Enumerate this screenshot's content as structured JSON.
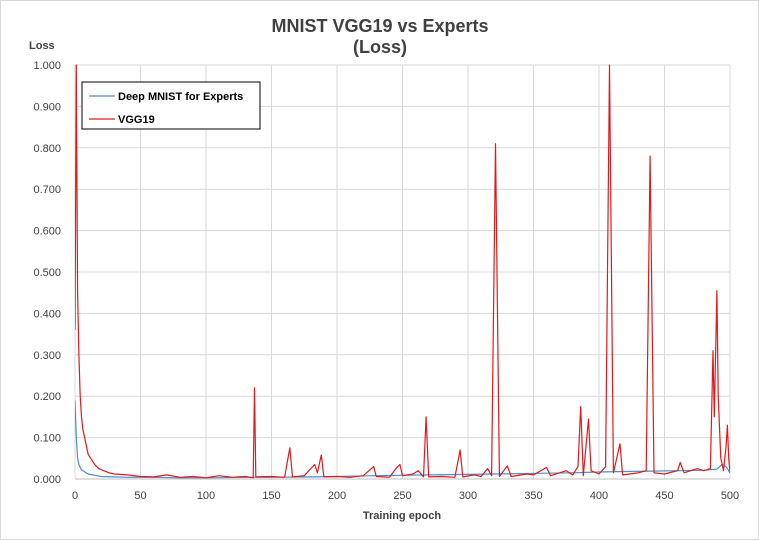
{
  "chart_data": {
    "type": "line",
    "title_lines": [
      "MNIST VGG19 vs Experts",
      "(Loss)"
    ],
    "xlabel": "Training  epoch",
    "ylabel": "Loss",
    "xlim": [
      0,
      500
    ],
    "ylim": [
      0,
      1.0
    ],
    "x_ticks": [
      0,
      50,
      100,
      150,
      200,
      250,
      300,
      350,
      400,
      450,
      500
    ],
    "x_tick_labels": [
      "0",
      "50",
      "100",
      "150",
      "200",
      "250",
      "300",
      "350",
      "400",
      "450",
      "500"
    ],
    "y_ticks": [
      0,
      0.1,
      0.2,
      0.3,
      0.4,
      0.5,
      0.6,
      0.7,
      0.8,
      0.9,
      1.0
    ],
    "y_tick_labels": [
      "0.000",
      "0.100",
      "0.200",
      "0.300",
      "0.400",
      "0.500",
      "0.600",
      "0.700",
      "0.800",
      "0.900",
      "1.000"
    ],
    "grid": "both",
    "legend_position": "top-left",
    "series": [
      {
        "name": "Deep MNIST for Experts",
        "color": "#4a90c8",
        "points": [
          [
            0,
            0.19
          ],
          [
            1,
            0.1
          ],
          [
            2,
            0.05
          ],
          [
            3,
            0.035
          ],
          [
            4,
            0.028
          ],
          [
            5,
            0.022
          ],
          [
            7,
            0.018
          ],
          [
            10,
            0.012
          ],
          [
            15,
            0.009
          ],
          [
            20,
            0.006
          ],
          [
            30,
            0.005
          ],
          [
            40,
            0.004
          ],
          [
            60,
            0.004
          ],
          [
            80,
            0.003
          ],
          [
            100,
            0.003
          ],
          [
            130,
            0.004
          ],
          [
            150,
            0.004
          ],
          [
            180,
            0.005
          ],
          [
            200,
            0.006
          ],
          [
            230,
            0.008
          ],
          [
            250,
            0.009
          ],
          [
            270,
            0.01
          ],
          [
            300,
            0.011
          ],
          [
            320,
            0.012
          ],
          [
            340,
            0.013
          ],
          [
            360,
            0.014
          ],
          [
            380,
            0.015
          ],
          [
            400,
            0.017
          ],
          [
            420,
            0.018
          ],
          [
            440,
            0.019
          ],
          [
            460,
            0.02
          ],
          [
            480,
            0.021
          ],
          [
            490,
            0.024
          ],
          [
            494,
            0.035
          ],
          [
            497,
            0.03
          ],
          [
            500,
            0.015
          ]
        ]
      },
      {
        "name": "VGG19",
        "color": "#e0191d",
        "points": [
          [
            0,
            0.36
          ],
          [
            1,
            1.0
          ],
          [
            2,
            0.45
          ],
          [
            3,
            0.3
          ],
          [
            4,
            0.2
          ],
          [
            5,
            0.15
          ],
          [
            6,
            0.12
          ],
          [
            8,
            0.09
          ],
          [
            10,
            0.06
          ],
          [
            12,
            0.05
          ],
          [
            15,
            0.035
          ],
          [
            18,
            0.025
          ],
          [
            22,
            0.02
          ],
          [
            26,
            0.015
          ],
          [
            30,
            0.012
          ],
          [
            40,
            0.01
          ],
          [
            50,
            0.006
          ],
          [
            60,
            0.005
          ],
          [
            70,
            0.01
          ],
          [
            80,
            0.004
          ],
          [
            90,
            0.006
          ],
          [
            100,
            0.003
          ],
          [
            110,
            0.008
          ],
          [
            120,
            0.004
          ],
          [
            130,
            0.006
          ],
          [
            136,
            0.003
          ],
          [
            137,
            0.22
          ],
          [
            138,
            0.005
          ],
          [
            150,
            0.006
          ],
          [
            160,
            0.004
          ],
          [
            164,
            0.075
          ],
          [
            166,
            0.005
          ],
          [
            175,
            0.008
          ],
          [
            180,
            0.025
          ],
          [
            183,
            0.035
          ],
          [
            185,
            0.015
          ],
          [
            188,
            0.058
          ],
          [
            190,
            0.005
          ],
          [
            200,
            0.006
          ],
          [
            210,
            0.004
          ],
          [
            220,
            0.008
          ],
          [
            228,
            0.03
          ],
          [
            230,
            0.006
          ],
          [
            240,
            0.004
          ],
          [
            245,
            0.025
          ],
          [
            248,
            0.035
          ],
          [
            250,
            0.008
          ],
          [
            258,
            0.012
          ],
          [
            262,
            0.02
          ],
          [
            266,
            0.005
          ],
          [
            268,
            0.15
          ],
          [
            270,
            0.005
          ],
          [
            280,
            0.006
          ],
          [
            290,
            0.004
          ],
          [
            294,
            0.07
          ],
          [
            296,
            0.005
          ],
          [
            305,
            0.01
          ],
          [
            310,
            0.006
          ],
          [
            315,
            0.025
          ],
          [
            318,
            0.008
          ],
          [
            321,
            0.81
          ],
          [
            324,
            0.006
          ],
          [
            330,
            0.032
          ],
          [
            333,
            0.006
          ],
          [
            345,
            0.012
          ],
          [
            350,
            0.01
          ],
          [
            360,
            0.028
          ],
          [
            363,
            0.008
          ],
          [
            375,
            0.02
          ],
          [
            380,
            0.01
          ],
          [
            384,
            0.03
          ],
          [
            386,
            0.175
          ],
          [
            388,
            0.008
          ],
          [
            392,
            0.145
          ],
          [
            394,
            0.02
          ],
          [
            400,
            0.012
          ],
          [
            405,
            0.03
          ],
          [
            408,
            1.0
          ],
          [
            411,
            0.015
          ],
          [
            416,
            0.085
          ],
          [
            418,
            0.01
          ],
          [
            430,
            0.015
          ],
          [
            436,
            0.02
          ],
          [
            439,
            0.78
          ],
          [
            442,
            0.015
          ],
          [
            450,
            0.012
          ],
          [
            460,
            0.02
          ],
          [
            462,
            0.04
          ],
          [
            465,
            0.015
          ],
          [
            475,
            0.025
          ],
          [
            480,
            0.02
          ],
          [
            485,
            0.025
          ],
          [
            487,
            0.31
          ],
          [
            488,
            0.15
          ],
          [
            490,
            0.455
          ],
          [
            491,
            0.2
          ],
          [
            493,
            0.05
          ],
          [
            495,
            0.02
          ],
          [
            497,
            0.08
          ],
          [
            498,
            0.13
          ],
          [
            499,
            0.05
          ],
          [
            500,
            0.015
          ]
        ]
      }
    ]
  }
}
